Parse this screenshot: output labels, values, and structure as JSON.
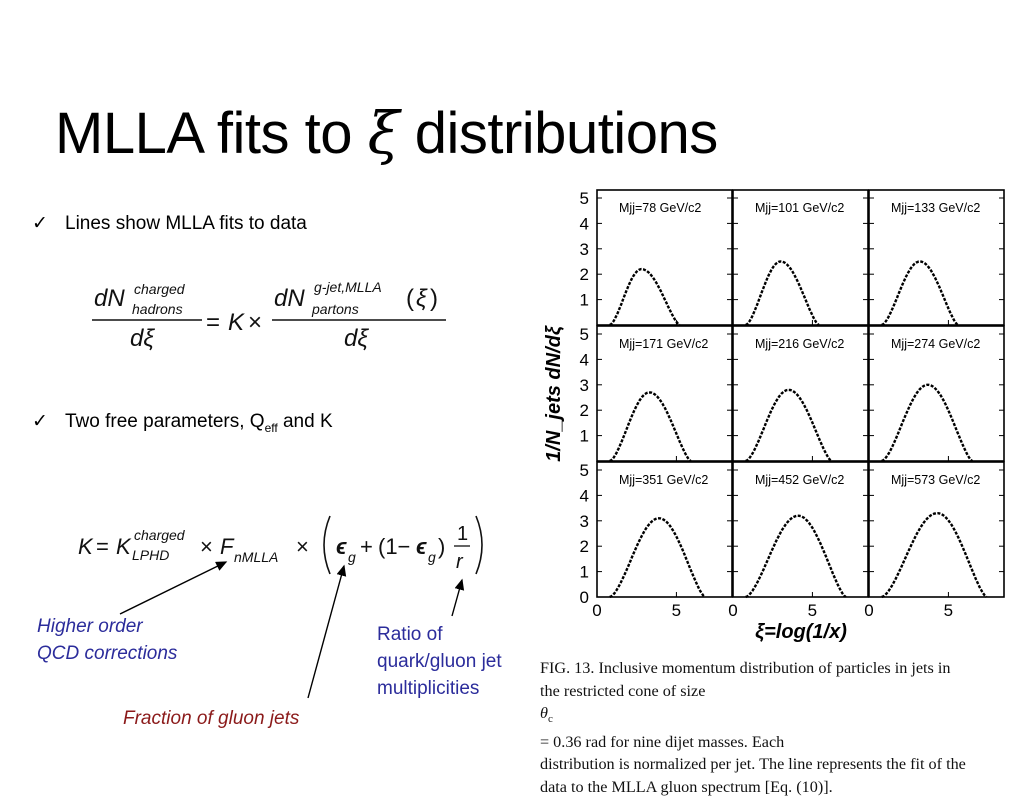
{
  "slide": {
    "title_pre": "MLLA fits to ",
    "title_xi": "ξ",
    "title_post": " distributions",
    "check": "✓"
  },
  "bullets": {
    "b1": "Lines show MLLA fits to data",
    "b2_pre": "Two free parameters, Q",
    "b2_sub": "eff",
    "b2_post": " and K"
  },
  "annotations": {
    "higher_order_1": "Higher order",
    "higher_order_2": "QCD corrections",
    "ratio_1": "Ratio of",
    "ratio_2": "quark/gluon jet",
    "ratio_3": "multiplicities",
    "fraction": "Fraction of gluon jets"
  },
  "figure": {
    "y_axis_label": "1/N_jets dN/dξ",
    "x_axis_label": "ξ=log(1/x)",
    "panel_labels": [
      "Mjj=78 GeV/c2",
      "Mjj=101 GeV/c2",
      "Mjj=133 GeV/c2",
      "Mjj=171 GeV/c2",
      "Mjj=216 GeV/c2",
      "Mjj=274 GeV/c2",
      "Mjj=351 GeV/c2",
      "Mjj=452 GeV/c2",
      "Mjj=573 GeV/c2"
    ],
    "y_ticks": [
      "0",
      "1",
      "2",
      "3",
      "4",
      "5"
    ],
    "x_ticks": [
      "0",
      "5"
    ]
  },
  "caption": {
    "line1": "FIG. 13.  Inclusive momentum distribution of particles in jets in",
    "line2_pre": "the restricted cone of size ",
    "line2_theta": "θ",
    "line2_sub": "c",
    "line2_post": " = 0.36 rad for nine dijet masses. Each",
    "line3": "distribution is normalized per jet. The line represents the fit of the",
    "line4": "data to the MLLA gluon spectrum [Eq. (10)]."
  },
  "chart_data": {
    "type": "line",
    "ylim": [
      0,
      5
    ],
    "xlabel": "ξ=log(1/x)",
    "ylabel": "1/N_jets dN/dξ",
    "panels": [
      {
        "label": "Mjj=78 GeV/c2",
        "peak_x": 2.8,
        "peak_y": 2.2,
        "x_end": 5.2
      },
      {
        "label": "Mjj=101 GeV/c2",
        "peak_x": 3.0,
        "peak_y": 2.5,
        "x_end": 5.4
      },
      {
        "label": "Mjj=133 GeV/c2",
        "peak_x": 3.2,
        "peak_y": 2.5,
        "x_end": 5.6
      },
      {
        "label": "Mjj=171 GeV/c2",
        "peak_x": 3.3,
        "peak_y": 2.7,
        "x_end": 5.9
      },
      {
        "label": "Mjj=216 GeV/c2",
        "peak_x": 3.5,
        "peak_y": 2.8,
        "x_end": 6.2
      },
      {
        "label": "Mjj=274 GeV/c2",
        "peak_x": 3.7,
        "peak_y": 3.0,
        "x_end": 6.5
      },
      {
        "label": "Mjj=351 GeV/c2",
        "peak_x": 3.9,
        "peak_y": 3.1,
        "x_end": 6.8
      },
      {
        "label": "Mjj=452 GeV/c2",
        "peak_x": 4.1,
        "peak_y": 3.2,
        "x_end": 7.1
      },
      {
        "label": "Mjj=573 GeV/c2",
        "peak_x": 4.3,
        "peak_y": 3.3,
        "x_end": 7.4
      }
    ]
  }
}
